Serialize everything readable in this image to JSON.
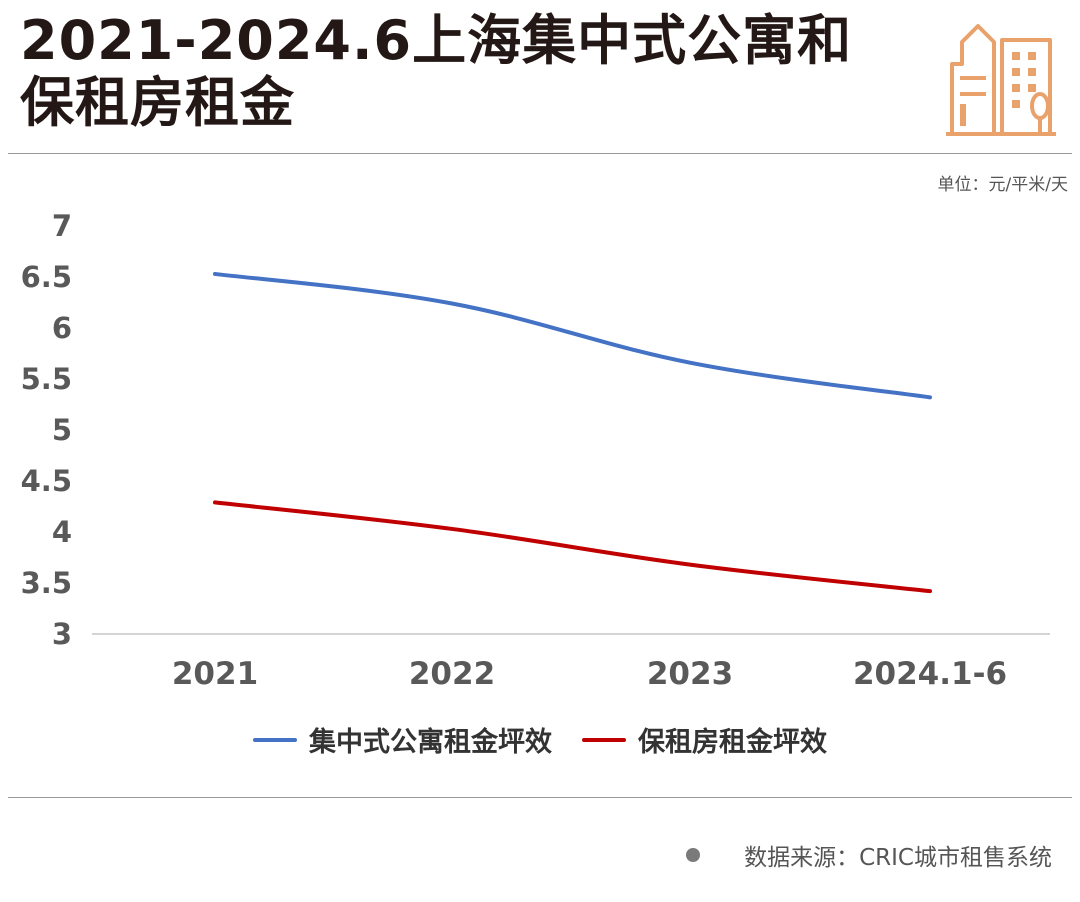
{
  "header": {
    "title_line1": "2021-2024.6上海集中式公寓和",
    "title_line2": "保租房租金"
  },
  "unit_label": "单位：元/平米/天",
  "source": "数据来源：CRIC城市租售系统",
  "colors": {
    "series_apartment": "#4472c4",
    "series_housing": "#c00000",
    "logo": "#e9a26b"
  },
  "icons": {
    "logo": "city-buildings-icon",
    "bullet": "dot-icon"
  },
  "chart_data": {
    "type": "line",
    "title": "2021-2024.6上海集中式公寓和保租房租金",
    "x": [
      "2021",
      "2022",
      "2023",
      "2024.1-6"
    ],
    "ylim": [
      3,
      7
    ],
    "yticks": [
      "3",
      "3.5",
      "4",
      "4.5",
      "5",
      "5.5",
      "6",
      "6.5",
      "7"
    ],
    "ytick_values": [
      3,
      3.5,
      4,
      4.5,
      5,
      5.5,
      6,
      6.5,
      7
    ],
    "grid": false,
    "legend_position": "bottom",
    "series": [
      {
        "name": "集中式公寓租金坪效",
        "values": [
          6.53,
          6.24,
          5.66,
          5.32
        ]
      },
      {
        "name": "保租房租金坪效",
        "values": [
          4.29,
          4.03,
          3.68,
          3.42
        ]
      }
    ]
  }
}
